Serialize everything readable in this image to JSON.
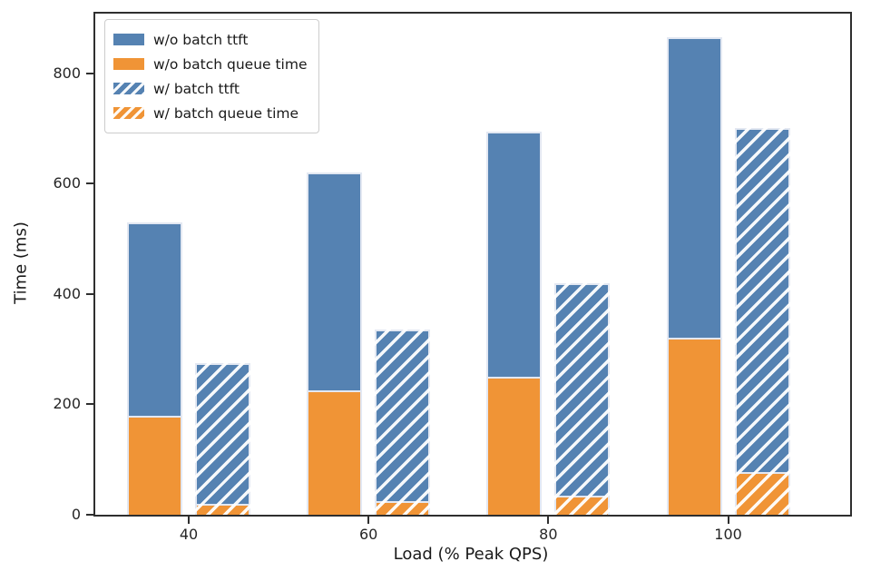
{
  "colors": {
    "blue": "#5582b2",
    "orange": "#f09436",
    "hatch_stripe": "#ffffff",
    "spine": "#2f2f2f",
    "legend_border": "#cccccc"
  },
  "chart_data": {
    "type": "bar",
    "title": "",
    "xlabel": "Load (% Peak QPS)",
    "ylabel": "Time (ms)",
    "categories": [
      "40",
      "60",
      "80",
      "100"
    ],
    "yticks": [
      0,
      200,
      400,
      600,
      800
    ],
    "ylim": [
      0,
      908
    ],
    "grid": false,
    "legend_position": "upper left",
    "note": "Each load level has two stacked bars: solid = w/o batch, hatched = w/ batch. Orange segment (queue time) is stacked at the bottom; bar total height = ttft.",
    "series": [
      {
        "label": "w/o batch ttft",
        "color": "#5582b2",
        "hatched": false,
        "role": "ttft_total",
        "values": [
          530,
          620,
          695,
          865
        ]
      },
      {
        "label": "w/o batch queue time",
        "color": "#f09436",
        "hatched": false,
        "role": "queue_segment",
        "values": [
          180,
          225,
          250,
          320
        ]
      },
      {
        "label": "w/ batch ttft",
        "color": "#5582b2",
        "hatched": true,
        "role": "ttft_total",
        "values": [
          275,
          335,
          420,
          700
        ]
      },
      {
        "label": "w/ batch queue time",
        "color": "#f09436",
        "hatched": true,
        "role": "queue_segment",
        "values": [
          20,
          25,
          35,
          78
        ]
      }
    ]
  }
}
